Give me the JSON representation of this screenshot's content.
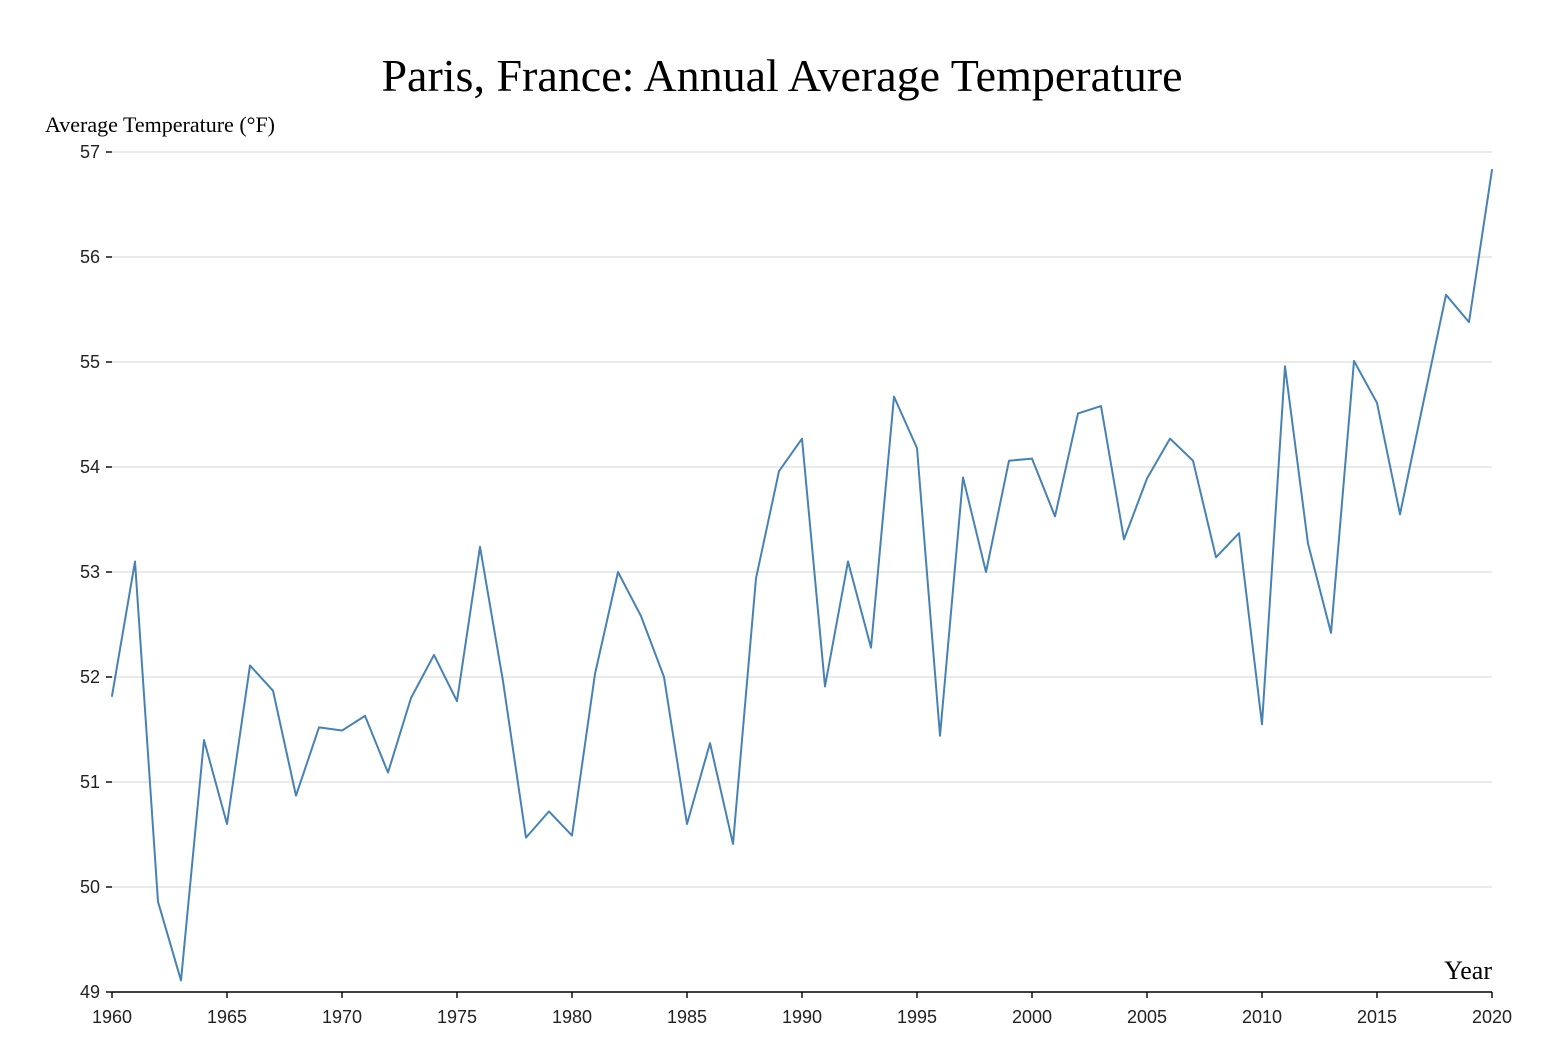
{
  "chart_data": {
    "type": "line",
    "title": "Paris, France: Annual Average Temperature",
    "xlabel": "Year",
    "ylabel": "Average Temperature (°F)",
    "xlim": [
      1960,
      2020
    ],
    "ylim": [
      49,
      57
    ],
    "x_ticks": [
      1960,
      1965,
      1970,
      1975,
      1980,
      1985,
      1990,
      1995,
      2000,
      2005,
      2010,
      2015,
      2020
    ],
    "y_ticks": [
      49,
      50,
      51,
      52,
      53,
      54,
      55,
      56,
      57
    ],
    "grid": "horizontal",
    "line_color": "#4682b4",
    "x": [
      1960,
      1961,
      1962,
      1963,
      1964,
      1965,
      1966,
      1967,
      1968,
      1969,
      1970,
      1971,
      1972,
      1973,
      1974,
      1975,
      1976,
      1977,
      1978,
      1979,
      1980,
      1981,
      1982,
      1983,
      1984,
      1985,
      1986,
      1987,
      1988,
      1989,
      1990,
      1991,
      1992,
      1993,
      1994,
      1995,
      1996,
      1997,
      1998,
      1999,
      2000,
      2001,
      2002,
      2003,
      2004,
      2005,
      2006,
      2007,
      2008,
      2009,
      2010,
      2011,
      2012,
      2013,
      2014,
      2015,
      2016,
      2017,
      2018,
      2019,
      2020
    ],
    "series": [
      {
        "values": [
          51.82,
          53.1,
          49.86,
          49.11,
          51.4,
          50.6,
          52.11,
          51.87,
          50.87,
          51.52,
          51.49,
          51.63,
          51.09,
          51.8,
          52.21,
          51.77,
          53.24,
          51.96,
          50.47,
          50.72,
          50.49,
          52.03,
          53.0,
          52.58,
          52.0,
          50.6,
          51.37,
          50.41,
          52.94,
          53.96,
          54.27,
          51.91,
          53.1,
          52.28,
          54.67,
          54.18,
          51.44,
          53.9,
          53.0,
          54.06,
          54.08,
          53.53,
          54.51,
          54.58,
          53.31,
          53.89,
          54.27,
          54.06,
          53.14,
          53.37,
          51.55,
          54.96,
          53.27,
          52.42,
          55.01,
          54.61,
          53.55,
          54.6,
          55.64,
          55.38,
          56.83
        ]
      }
    ]
  }
}
